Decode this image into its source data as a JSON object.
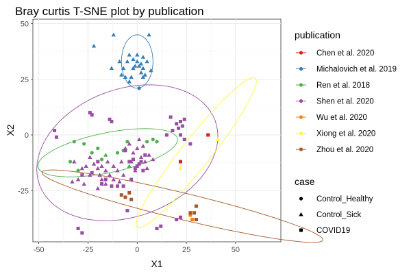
{
  "chart_data": {
    "type": "scatter",
    "title": "Bray curtis T-SNE plot by publication",
    "xlabel": "X1",
    "ylabel": "X2",
    "xlim": [
      -53,
      73
    ],
    "ylim": [
      -48,
      52
    ],
    "xticks": [
      -50,
      -25,
      0,
      25,
      50
    ],
    "yticks": [
      -25,
      0,
      25,
      50
    ],
    "grid": true,
    "color_legend": {
      "title": "publication",
      "placement": "right",
      "entries": [
        {
          "name": "Chen et al. 2020",
          "color": "#e41a1c"
        },
        {
          "name": "Michalovich et al. 2019",
          "color": "#377eb8"
        },
        {
          "name": "Ren et al. 2018",
          "color": "#4daf4a"
        },
        {
          "name": "Shen et al. 2020",
          "color": "#984ea3"
        },
        {
          "name": "Wu et al. 2020",
          "color": "#ff7f00"
        },
        {
          "name": "Xiong et al. 2020",
          "color": "#ffff33"
        },
        {
          "name": "Zhou et al. 2020",
          "color": "#a65628"
        }
      ]
    },
    "shape_legend": {
      "title": "case",
      "placement": "right",
      "entries": [
        {
          "name": "Control_Healthy",
          "shape": "circle"
        },
        {
          "name": "Control_Sick",
          "shape": "triangle"
        },
        {
          "name": "COVID19",
          "shape": "square"
        }
      ]
    },
    "ellipses": [
      {
        "series": "Michalovich et al. 2019",
        "cx": 0,
        "cy": 33,
        "rx": 8,
        "ry": 12,
        "angle": 0
      },
      {
        "series": "Ren et al. 2018",
        "cx": -15,
        "cy": -8,
        "rx": 36,
        "ry": 9,
        "angle": 10
      },
      {
        "series": "Shen et al. 2020",
        "cx": -5,
        "cy": -8,
        "rx": 47,
        "ry": 29,
        "angle": 15
      },
      {
        "series": "Xiong et al. 2020",
        "cx": 30,
        "cy": -8,
        "rx": 45,
        "ry": 7,
        "angle": 48
      },
      {
        "series": "Zhou et al. 2020",
        "cx": 23,
        "cy": -32,
        "rx": 73,
        "ry": 6,
        "angle": -12
      }
    ],
    "series": [
      {
        "name": "Chen et al. 2020",
        "color": "#e41a1c",
        "points": [
          {
            "x": 36,
            "y": 0,
            "shape": "square"
          },
          {
            "x": 22,
            "y": -12,
            "shape": "square"
          }
        ]
      },
      {
        "name": "Michalovich et al. 2019",
        "color": "#377eb8",
        "points": [
          {
            "x": -12,
            "y": 45,
            "shape": "triangle"
          },
          {
            "x": 6,
            "y": 45,
            "shape": "triangle"
          },
          {
            "x": -22,
            "y": 40,
            "shape": "triangle"
          },
          {
            "x": -13,
            "y": 30,
            "shape": "triangle"
          },
          {
            "x": -9,
            "y": 33,
            "shape": "triangle"
          },
          {
            "x": -7,
            "y": 30,
            "shape": "triangle"
          },
          {
            "x": -5,
            "y": 33,
            "shape": "triangle"
          },
          {
            "x": -4,
            "y": 36,
            "shape": "triangle"
          },
          {
            "x": -2,
            "y": 34,
            "shape": "triangle"
          },
          {
            "x": -2,
            "y": 30,
            "shape": "triangle"
          },
          {
            "x": -1,
            "y": 31,
            "shape": "triangle"
          },
          {
            "x": 0,
            "y": 36,
            "shape": "triangle"
          },
          {
            "x": 0,
            "y": 33,
            "shape": "triangle"
          },
          {
            "x": 1,
            "y": 31,
            "shape": "triangle"
          },
          {
            "x": 2,
            "y": 28,
            "shape": "triangle"
          },
          {
            "x": 2,
            "y": 32,
            "shape": "triangle"
          },
          {
            "x": 3,
            "y": 30,
            "shape": "triangle"
          },
          {
            "x": 3,
            "y": 35,
            "shape": "triangle"
          },
          {
            "x": 4,
            "y": 27,
            "shape": "triangle"
          },
          {
            "x": 5,
            "y": 33,
            "shape": "triangle"
          },
          {
            "x": -3,
            "y": 26,
            "shape": "triangle"
          },
          {
            "x": -4,
            "y": 24,
            "shape": "triangle"
          },
          {
            "x": -6,
            "y": 26,
            "shape": "triangle"
          },
          {
            "x": -8,
            "y": 27,
            "shape": "triangle"
          },
          {
            "x": 7,
            "y": 29,
            "shape": "triangle"
          },
          {
            "x": 1,
            "y": 21,
            "shape": "circle"
          },
          {
            "x": 3,
            "y": 26,
            "shape": "triangle"
          }
        ]
      },
      {
        "name": "Ren et al. 2018",
        "color": "#4daf4a",
        "points": [
          {
            "x": -32,
            "y": -3,
            "shape": "circle"
          },
          {
            "x": -27,
            "y": -4,
            "shape": "circle"
          },
          {
            "x": -20,
            "y": -6,
            "shape": "circle"
          },
          {
            "x": -18,
            "y": -11,
            "shape": "circle"
          },
          {
            "x": -16,
            "y": -9,
            "shape": "triangle"
          },
          {
            "x": -10,
            "y": -8,
            "shape": "circle"
          },
          {
            "x": -7,
            "y": -7,
            "shape": "circle"
          },
          {
            "x": -5,
            "y": -3,
            "shape": "circle"
          },
          {
            "x": 5,
            "y": -3,
            "shape": "circle"
          },
          {
            "x": 8,
            "y": -2,
            "shape": "circle"
          },
          {
            "x": 10,
            "y": -3,
            "shape": "circle"
          },
          {
            "x": -34,
            "y": -12,
            "shape": "circle"
          },
          {
            "x": -30,
            "y": -16,
            "shape": "circle"
          },
          {
            "x": -23,
            "y": -8,
            "shape": "circle"
          },
          {
            "x": -4,
            "y": -14,
            "shape": "triangle"
          }
        ]
      },
      {
        "name": "Shen et al. 2020",
        "color": "#984ea3",
        "points": [
          {
            "x": -42,
            "y": 2,
            "shape": "square"
          },
          {
            "x": -41,
            "y": -1,
            "shape": "square"
          },
          {
            "x": -24,
            "y": 10,
            "shape": "square"
          },
          {
            "x": -23,
            "y": 9,
            "shape": "square"
          },
          {
            "x": -14,
            "y": 7,
            "shape": "square"
          },
          {
            "x": -13,
            "y": 6,
            "shape": "square"
          },
          {
            "x": 17,
            "y": 8,
            "shape": "square"
          },
          {
            "x": 20,
            "y": 5,
            "shape": "square"
          },
          {
            "x": 21,
            "y": 3,
            "shape": "square"
          },
          {
            "x": 22,
            "y": 6,
            "shape": "square"
          },
          {
            "x": 23,
            "y": 4,
            "shape": "square"
          },
          {
            "x": 24,
            "y": 7,
            "shape": "square"
          },
          {
            "x": 18,
            "y": 2,
            "shape": "square"
          },
          {
            "x": 15,
            "y": 0,
            "shape": "square"
          },
          {
            "x": 22,
            "y": 0,
            "shape": "square"
          },
          {
            "x": 27,
            "y": -4,
            "shape": "square"
          },
          {
            "x": 24,
            "y": -2,
            "shape": "square"
          },
          {
            "x": -32,
            "y": -12,
            "shape": "triangle"
          },
          {
            "x": -28,
            "y": -15,
            "shape": "triangle"
          },
          {
            "x": -26,
            "y": -14,
            "shape": "triangle"
          },
          {
            "x": -24,
            "y": -10,
            "shape": "triangle"
          },
          {
            "x": -22,
            "y": -13,
            "shape": "triangle"
          },
          {
            "x": -20,
            "y": -15,
            "shape": "triangle"
          },
          {
            "x": -19,
            "y": -18,
            "shape": "triangle"
          },
          {
            "x": -18,
            "y": -14,
            "shape": "triangle"
          },
          {
            "x": -16,
            "y": -16,
            "shape": "triangle"
          },
          {
            "x": -15,
            "y": -12,
            "shape": "triangle"
          },
          {
            "x": -14,
            "y": -18,
            "shape": "triangle"
          },
          {
            "x": -12,
            "y": -14,
            "shape": "triangle"
          },
          {
            "x": -10,
            "y": -16,
            "shape": "triangle"
          },
          {
            "x": -8,
            "y": -12,
            "shape": "triangle"
          },
          {
            "x": -6,
            "y": -6,
            "shape": "triangle"
          },
          {
            "x": -4,
            "y": -4,
            "shape": "triangle"
          },
          {
            "x": -2,
            "y": -8,
            "shape": "triangle"
          },
          {
            "x": 0,
            "y": -6,
            "shape": "triangle"
          },
          {
            "x": 1,
            "y": -2,
            "shape": "triangle"
          },
          {
            "x": 2,
            "y": -10,
            "shape": "triangle"
          },
          {
            "x": 3,
            "y": -5,
            "shape": "triangle"
          },
          {
            "x": 4,
            "y": -12,
            "shape": "triangle"
          },
          {
            "x": 6,
            "y": -9,
            "shape": "triangle"
          },
          {
            "x": 8,
            "y": -11,
            "shape": "triangle"
          },
          {
            "x": 5,
            "y": -15,
            "shape": "triangle"
          },
          {
            "x": -1,
            "y": -16,
            "shape": "triangle"
          },
          {
            "x": -3,
            "y": -12,
            "shape": "triangle"
          },
          {
            "x": -7,
            "y": -18,
            "shape": "triangle"
          },
          {
            "x": -9,
            "y": -21,
            "shape": "triangle"
          },
          {
            "x": -12,
            "y": -20,
            "shape": "triangle"
          },
          {
            "x": -16,
            "y": -22,
            "shape": "triangle"
          },
          {
            "x": -18,
            "y": -20,
            "shape": "triangle"
          },
          {
            "x": -20,
            "y": -24,
            "shape": "triangle"
          },
          {
            "x": -24,
            "y": -18,
            "shape": "triangle"
          },
          {
            "x": -27,
            "y": -22,
            "shape": "triangle"
          },
          {
            "x": -30,
            "y": -20,
            "shape": "triangle"
          },
          {
            "x": -33,
            "y": -21,
            "shape": "triangle"
          },
          {
            "x": -18,
            "y": -22,
            "shape": "square"
          },
          {
            "x": -16,
            "y": -20,
            "shape": "square"
          },
          {
            "x": -13,
            "y": -23,
            "shape": "square"
          },
          {
            "x": -10,
            "y": -23,
            "shape": "square"
          },
          {
            "x": -7,
            "y": -23,
            "shape": "square"
          },
          {
            "x": -3,
            "y": -20,
            "shape": "square"
          },
          {
            "x": -1,
            "y": -15,
            "shape": "square"
          },
          {
            "x": 1,
            "y": -13,
            "shape": "square"
          },
          {
            "x": 3,
            "y": -16,
            "shape": "square"
          },
          {
            "x": -28,
            "y": -18,
            "shape": "square"
          },
          {
            "x": -23,
            "y": -17,
            "shape": "square"
          },
          {
            "x": -20,
            "y": -12,
            "shape": "square"
          },
          {
            "x": -6,
            "y": -7,
            "shape": "square"
          },
          {
            "x": -4,
            "y": -12,
            "shape": "square"
          },
          {
            "x": -2,
            "y": -11,
            "shape": "square"
          },
          {
            "x": 0,
            "y": -14,
            "shape": "square"
          },
          {
            "x": 2,
            "y": -12,
            "shape": "square"
          },
          {
            "x": 4,
            "y": -9,
            "shape": "square"
          },
          {
            "x": -30,
            "y": -42,
            "shape": "square"
          },
          {
            "x": -28,
            "y": -44,
            "shape": "square"
          },
          {
            "x": 10,
            "y": -42,
            "shape": "square"
          },
          {
            "x": 12,
            "y": -41,
            "shape": "square"
          },
          {
            "x": 20,
            "y": -38,
            "shape": "square"
          },
          {
            "x": 22,
            "y": -37,
            "shape": "square"
          },
          {
            "x": -5,
            "y": -34,
            "shape": "square"
          }
        ]
      },
      {
        "name": "Wu et al. 2020",
        "color": "#ff7f00",
        "points": [
          {
            "x": 27,
            "y": -36,
            "shape": "square"
          },
          {
            "x": 28,
            "y": -38,
            "shape": "square"
          }
        ]
      },
      {
        "name": "Xiong et al. 2020",
        "color": "#ffff33",
        "points": [
          {
            "x": 22,
            "y": -15,
            "shape": "triangle"
          },
          {
            "x": 41,
            "y": -2,
            "shape": "triangle"
          }
        ]
      },
      {
        "name": "Zhou et al. 2020",
        "color": "#a65628",
        "points": [
          {
            "x": -8,
            "y": -27,
            "shape": "square"
          },
          {
            "x": -6,
            "y": -28,
            "shape": "square"
          },
          {
            "x": -4,
            "y": -26,
            "shape": "square"
          },
          {
            "x": -3,
            "y": -29,
            "shape": "square"
          },
          {
            "x": 27,
            "y": -35,
            "shape": "square"
          },
          {
            "x": 30,
            "y": -32,
            "shape": "square"
          },
          {
            "x": 30,
            "y": -38,
            "shape": "square"
          },
          {
            "x": 29,
            "y": -35,
            "shape": "square"
          }
        ]
      }
    ]
  }
}
